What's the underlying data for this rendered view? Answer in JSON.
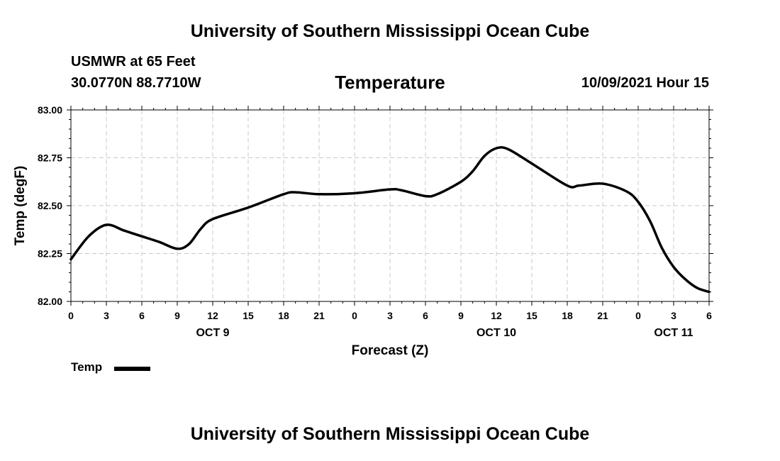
{
  "header": {
    "title": "University of Southern Mississippi Ocean Cube",
    "station": "USMWR at 65 Feet",
    "coords": "30.0770N  88.7710W",
    "chart_title": "Temperature",
    "datetime": "10/09/2021 Hour 15"
  },
  "footer": {
    "title": "University of Southern Mississippi Ocean Cube"
  },
  "legend": {
    "label": "Temp",
    "color": "#000000"
  },
  "chart_data": {
    "type": "line",
    "title": "Temperature",
    "xlabel": "Forecast (Z)",
    "ylabel": "Temp (degF)",
    "xlim": [
      0,
      54
    ],
    "ylim": [
      82.0,
      83.0
    ],
    "y_ticks": [
      82.0,
      82.25,
      82.5,
      82.75,
      83.0
    ],
    "y_tick_labels": [
      "82.00",
      "82.25",
      "82.50",
      "82.75",
      "83.00"
    ],
    "x_ticks": [
      0,
      3,
      6,
      9,
      12,
      15,
      18,
      21,
      24,
      27,
      30,
      33,
      36,
      39,
      42,
      45,
      48,
      51,
      54
    ],
    "x_tick_labels": [
      "0",
      "3",
      "6",
      "9",
      "12",
      "15",
      "18",
      "21",
      "0",
      "3",
      "6",
      "9",
      "12",
      "15",
      "18",
      "21",
      "0",
      "3",
      "6"
    ],
    "date_labels": [
      {
        "x": 12,
        "label": "OCT 9"
      },
      {
        "x": 36,
        "label": "OCT 10"
      },
      {
        "x": 51,
        "label": "OCT 11"
      }
    ],
    "grid": true,
    "series": [
      {
        "name": "Temp",
        "color": "#000000",
        "x": [
          0,
          1.5,
          3,
          4.5,
          6,
          7.5,
          9,
          10,
          11,
          12,
          15,
          18,
          19,
          21,
          24,
          27,
          28,
          30,
          31,
          33,
          34,
          35,
          36,
          37,
          39,
          42,
          43,
          45,
          47,
          48,
          49,
          50,
          51,
          52,
          53,
          54
        ],
        "values": [
          82.22,
          82.34,
          82.4,
          82.37,
          82.34,
          82.31,
          82.275,
          82.3,
          82.38,
          82.43,
          82.49,
          82.56,
          82.57,
          82.56,
          82.565,
          82.585,
          82.58,
          82.55,
          82.56,
          82.625,
          82.68,
          82.76,
          82.8,
          82.795,
          82.72,
          82.605,
          82.605,
          82.615,
          82.575,
          82.52,
          82.42,
          82.28,
          82.18,
          82.115,
          82.07,
          82.05
        ]
      }
    ]
  }
}
